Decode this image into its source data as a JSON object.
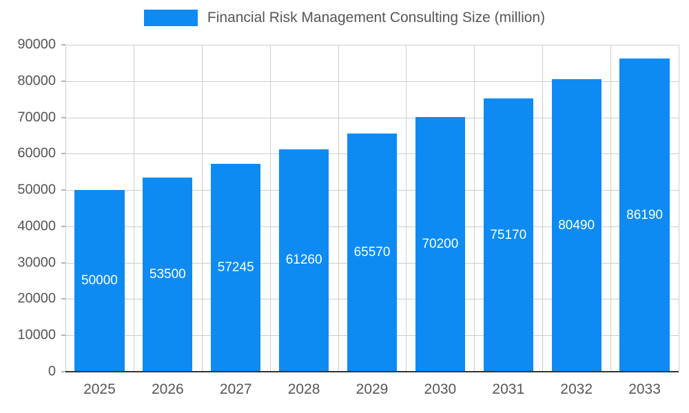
{
  "chart_data": {
    "type": "bar",
    "title": "Financial Risk Management Consulting Size (million)",
    "categories": [
      "2025",
      "2026",
      "2027",
      "2028",
      "2029",
      "2030",
      "2031",
      "2032",
      "2033"
    ],
    "values": [
      50000,
      53500,
      57245,
      61260,
      65570,
      70200,
      75170,
      80490,
      86190
    ],
    "xlabel": "",
    "ylabel": "",
    "ylim": [
      0,
      90000
    ],
    "ytick_step": 10000,
    "yticks": [
      0,
      10000,
      20000,
      30000,
      40000,
      50000,
      60000,
      70000,
      80000,
      90000
    ],
    "grid": "on",
    "legend_position": "top",
    "bar_color": "#0d8bf2",
    "value_label_color": "#ffffff",
    "axis_label_color": "#555555",
    "gridline_color": "#cccccc",
    "baseline_color": "#333333",
    "tick_color": "#666666",
    "background_color": "#ffffff"
  }
}
